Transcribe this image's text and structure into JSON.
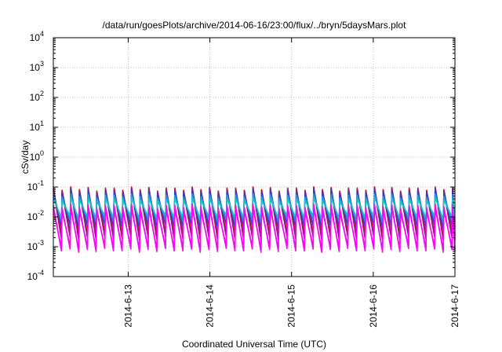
{
  "chart_data": {
    "type": "line",
    "title": "/data/run/goesPlots/archive/2014-06-16/23:00/flux/../bryn/5daysMars.plot",
    "xlabel": "Coordinated Universal Time (UTC)",
    "ylabel": "cSv/day",
    "yscale": "log",
    "ylim": [
      0.0001,
      10000
    ],
    "xlim": [
      "2014-06-12 02:00",
      "2014-06-17 00:00"
    ],
    "x_ticks": [
      "2014-6-13",
      "2014-6-14",
      "2014-6-15",
      "2014-6-16",
      "2014-6-17"
    ],
    "y_ticks": [
      {
        "base": "10",
        "exp": "-4"
      },
      {
        "base": "10",
        "exp": "-3"
      },
      {
        "base": "10",
        "exp": "-2"
      },
      {
        "base": "10",
        "exp": "-1"
      },
      {
        "base": "10",
        "exp": "0"
      },
      {
        "base": "10",
        "exp": "1"
      },
      {
        "base": "10",
        "exp": "2"
      },
      {
        "base": "10",
        "exp": "3"
      },
      {
        "base": "10",
        "exp": "4"
      }
    ],
    "grid": true,
    "pattern": {
      "description": "sawtooth, peak every ~2.55 hours, one linear decline per period",
      "period_hours": 2.55,
      "x_start": "2014-06-12 02:00",
      "x_end": "2014-06-17 00:00"
    },
    "series": [
      {
        "color": "#d61c1c",
        "peak": 0.095,
        "trough": 0.0025
      },
      {
        "color": "#8c1a6e",
        "peak": 0.085,
        "trough": 0.0018
      },
      {
        "color": "#2c3fd6",
        "peak": 0.075,
        "trough": 0.0045
      },
      {
        "color": "#1c9bd8",
        "peak": 0.055,
        "trough": 0.007
      },
      {
        "color": "#14c6c6",
        "peak": 0.04,
        "trough": 0.0095
      },
      {
        "color": "#e61ee6",
        "peak": 0.025,
        "trough": 0.0007
      },
      {
        "color": "#ff00ff",
        "peak": 0.018,
        "trough": 0.0009
      }
    ]
  }
}
